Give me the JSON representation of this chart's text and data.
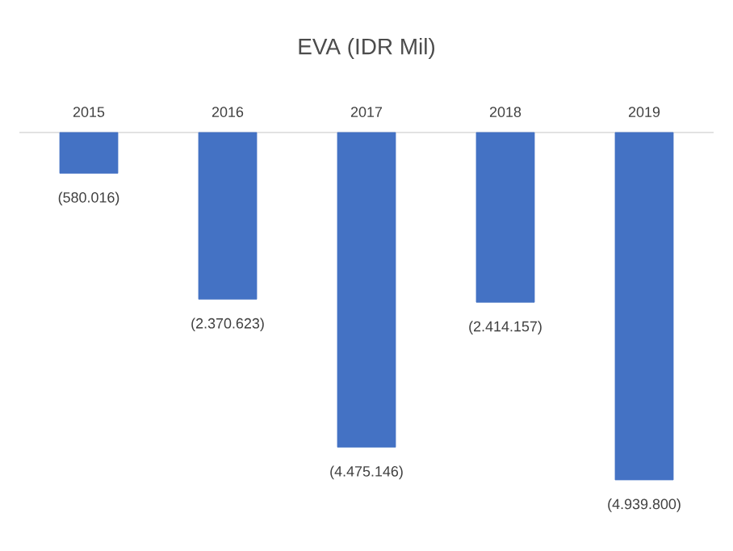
{
  "chart_data": {
    "type": "bar",
    "title": "EVA (IDR Mil)",
    "categories": [
      "2015",
      "2016",
      "2017",
      "2018",
      "2019"
    ],
    "values": [
      -580016,
      -2370623,
      -4475146,
      -2414157,
      -4939800
    ],
    "value_labels": [
      "(580.016)",
      "(2.370.623)",
      "(4.475.146)",
      "(2.414.157)",
      "(4.939.800)"
    ],
    "color": "#4472c4"
  }
}
